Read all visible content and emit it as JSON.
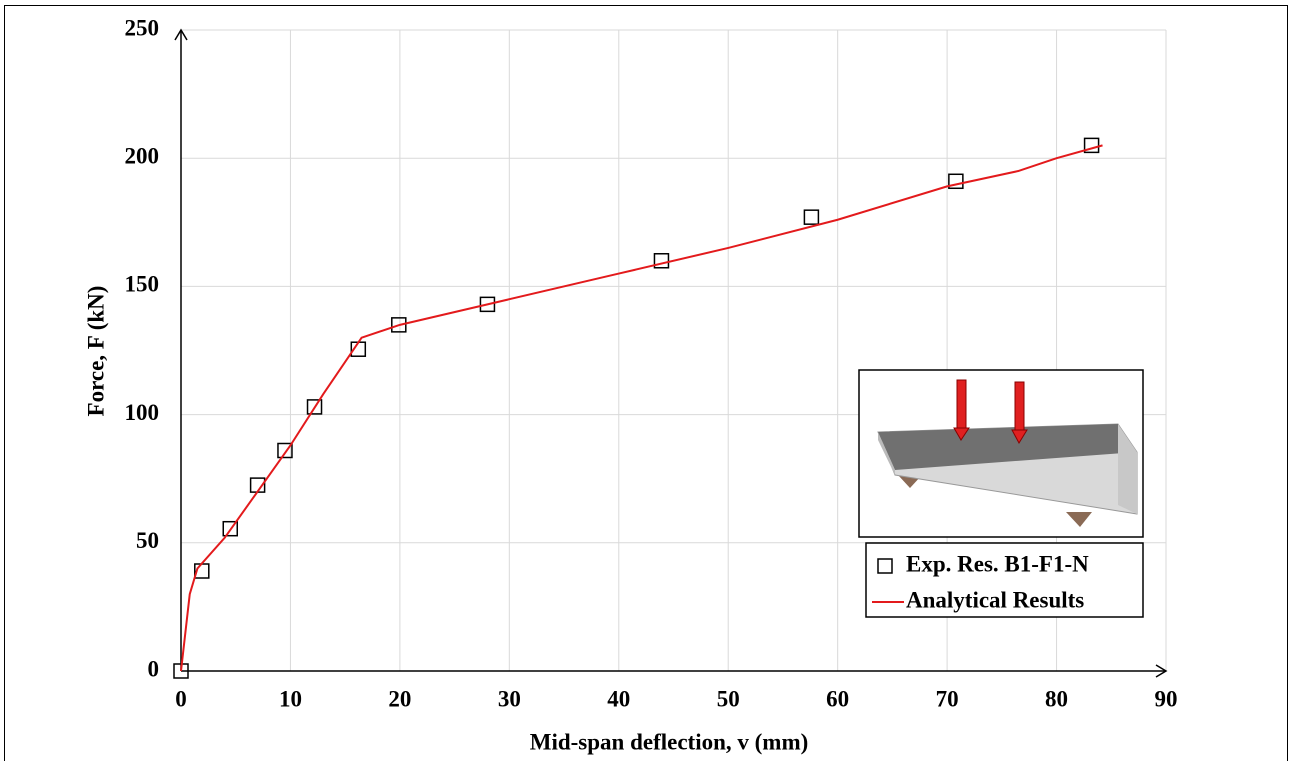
{
  "chart_data": {
    "type": "line",
    "xlabel": "Mid-span deflection, v (mm)",
    "ylabel": "Force, F (kN)",
    "xlim": [
      0,
      90
    ],
    "xticks": [
      0,
      10,
      20,
      30,
      40,
      50,
      60,
      70,
      80,
      90
    ],
    "ylim": [
      0,
      250
    ],
    "yticks": [
      0,
      50,
      100,
      150,
      200,
      250
    ],
    "grid": true,
    "legend_position": "lower right",
    "series": [
      {
        "name": "Exp. Res. B1-F1-N",
        "style": "markers",
        "color": "#000000",
        "x": [
          0,
          1.9,
          4.5,
          7,
          9.5,
          12.2,
          16.2,
          19.9,
          28,
          43.9,
          57.6,
          70.8,
          83.2
        ],
        "values": [
          0,
          39,
          55.5,
          72.5,
          86,
          103,
          125.5,
          135,
          143,
          160,
          177,
          191,
          205
        ]
      },
      {
        "name": "Analytical Results",
        "style": "line",
        "color": "#e31a1c",
        "x": [
          0,
          0.8,
          1.5,
          4,
          7,
          10,
          13,
          16.5,
          20,
          28,
          40,
          50,
          60,
          70,
          76.5,
          80,
          84.2
        ],
        "values": [
          0,
          30,
          40,
          52,
          70,
          88,
          108,
          130,
          135,
          143,
          155,
          165,
          176,
          189,
          195,
          200,
          205
        ]
      }
    ]
  }
}
